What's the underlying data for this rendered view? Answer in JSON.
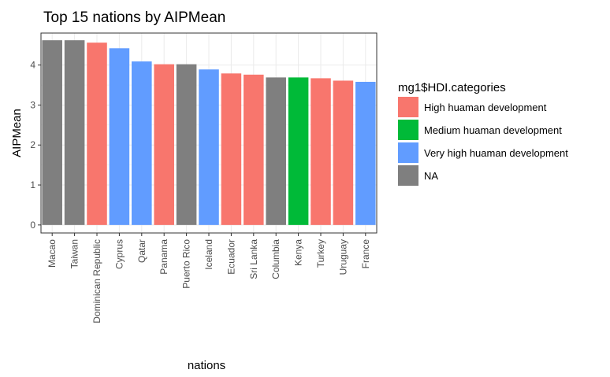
{
  "chart_data": {
    "type": "bar",
    "title": "Top 15 nations by AIPMean",
    "xlabel": "nations",
    "ylabel": "AIPMean",
    "ylim": [
      -0.2,
      4.8
    ],
    "yticks": [
      0,
      1,
      2,
      3,
      4
    ],
    "grid": true,
    "legend_position": "right",
    "categories": [
      "Macao",
      "Taiwan",
      "Dominican Republic",
      "Cyprus",
      "Qatar",
      "Panama",
      "Puerto Rico",
      "Iceland",
      "Ecuador",
      "Sri Lanka",
      "Columbia",
      "Kenya",
      "Turkey",
      "Uruguay",
      "France"
    ],
    "values": [
      4.62,
      4.62,
      4.56,
      4.42,
      4.09,
      4.02,
      4.02,
      3.89,
      3.79,
      3.76,
      3.69,
      3.69,
      3.67,
      3.61,
      3.58
    ],
    "groups": [
      "NA",
      "NA",
      "High huaman development",
      "Very high huaman development",
      "Very high huaman development",
      "High huaman development",
      "NA",
      "Very high huaman development",
      "High huaman development",
      "High huaman development",
      "NA",
      "Medium huaman development",
      "High huaman development",
      "High huaman development",
      "Very high huaman development"
    ],
    "legend": {
      "title": "mg1$HDI.categories",
      "entries": [
        {
          "label": "High huaman development",
          "color": "#F8766D"
        },
        {
          "label": "Medium huaman development",
          "color": "#00BA38"
        },
        {
          "label": "Very high huaman development",
          "color": "#619CFF"
        },
        {
          "label": "NA",
          "color": "#7F7F7F"
        }
      ]
    }
  }
}
